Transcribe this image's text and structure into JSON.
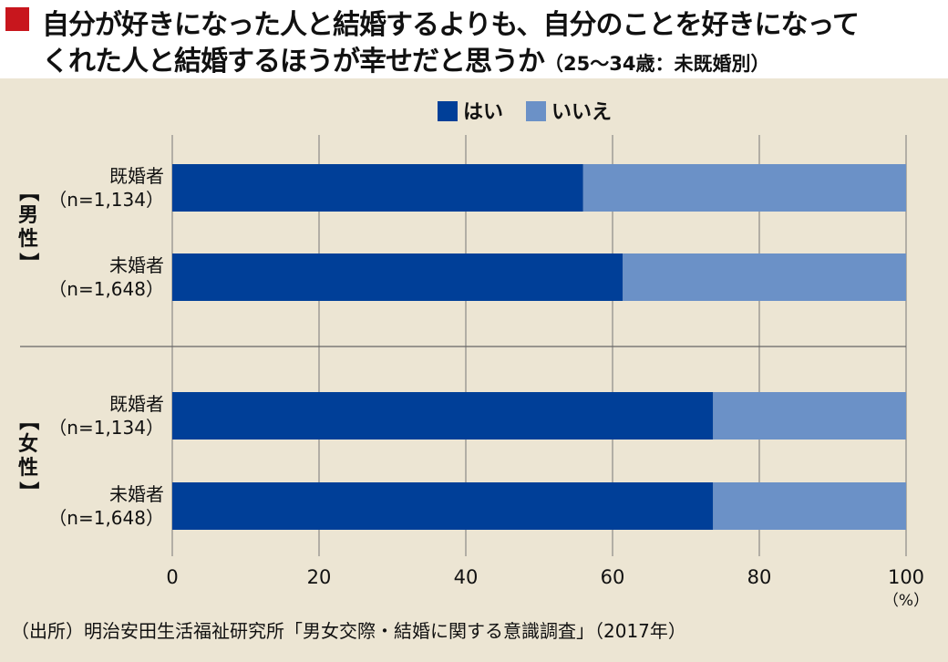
{
  "title": {
    "line1": "自分が好きになった人と結婚するよりも、自分のことを好きになって",
    "line2": "くれた人と結婚するほうが幸せだと思うか",
    "subtitle": "（25〜34歳：未既婚別）"
  },
  "source": "（出所）明治安田生活福祉研究所「男女交際・結婚に関する意識調査」（2017年）",
  "colors": {
    "yes": "#003f98",
    "no": "#6b91c7",
    "grid": "#777777",
    "panel": "#ece5d3",
    "title_marker": "#c8161d"
  },
  "chart_data": {
    "type": "bar",
    "orientation": "horizontal",
    "stacked": true,
    "legend": {
      "position": "top",
      "entries": [
        "はい",
        "いいえ"
      ]
    },
    "groups": [
      {
        "name": "【男性】",
        "categories": [
          {
            "label": "既婚者",
            "n": "（n=1,134）",
            "values": [
              56,
              44
            ]
          },
          {
            "label": "未婚者",
            "n": "（n=1,648）",
            "values": [
              61.4,
              38.6
            ]
          }
        ]
      },
      {
        "name": "【女性】",
        "categories": [
          {
            "label": "既婚者",
            "n": "（n=1,134）",
            "values": [
              73.7,
              26.3
            ]
          },
          {
            "label": "未婚者",
            "n": "（n=1,648）",
            "values": [
              73.7,
              26.3
            ]
          }
        ]
      }
    ],
    "series": [
      {
        "name": "はい"
      },
      {
        "name": "いいえ"
      }
    ],
    "xlim": [
      0,
      100
    ],
    "xticks": [
      0,
      20,
      40,
      60,
      80,
      100
    ],
    "unit": "（%）",
    "grid": true
  }
}
